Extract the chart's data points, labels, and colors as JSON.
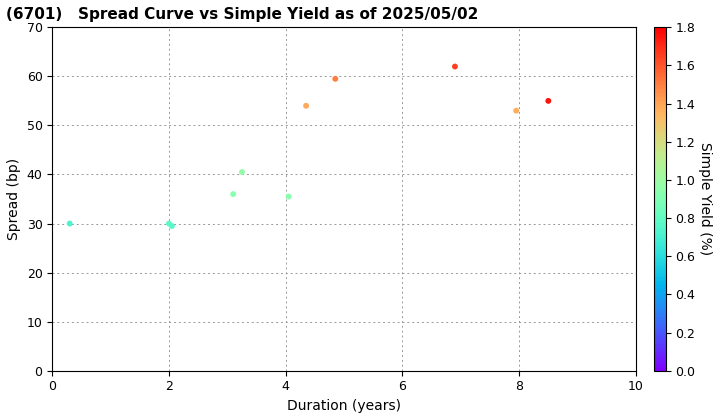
{
  "title": "(6701)   Spread Curve vs Simple Yield as of 2025/05/02",
  "xlabel": "Duration (years)",
  "ylabel": "Spread (bp)",
  "colorbar_label": "Simple Yield (%)",
  "xlim": [
    0,
    10
  ],
  "ylim": [
    0,
    70
  ],
  "xticks": [
    0,
    2,
    4,
    6,
    8,
    10
  ],
  "yticks": [
    0,
    10,
    20,
    30,
    40,
    50,
    60,
    70
  ],
  "colorbar_min": 0.0,
  "colorbar_max": 1.8,
  "colorbar_ticks": [
    0.0,
    0.2,
    0.4,
    0.6,
    0.8,
    1.0,
    1.2,
    1.4,
    1.6,
    1.8
  ],
  "data_points": [
    {
      "duration": 0.3,
      "spread": 30,
      "simple_yield": 0.72
    },
    {
      "duration": 2.0,
      "spread": 30,
      "simple_yield": 0.78
    },
    {
      "duration": 2.05,
      "spread": 29.5,
      "simple_yield": 0.76
    },
    {
      "duration": 3.1,
      "spread": 36,
      "simple_yield": 0.93
    },
    {
      "duration": 3.25,
      "spread": 40.5,
      "simple_yield": 0.97
    },
    {
      "duration": 4.05,
      "spread": 35.5,
      "simple_yield": 0.93
    },
    {
      "duration": 4.35,
      "spread": 54,
      "simple_yield": 1.38
    },
    {
      "duration": 4.85,
      "spread": 59.5,
      "simple_yield": 1.5
    },
    {
      "duration": 6.9,
      "spread": 62,
      "simple_yield": 1.65
    },
    {
      "duration": 7.95,
      "spread": 53,
      "simple_yield": 1.37
    },
    {
      "duration": 8.5,
      "spread": 55,
      "simple_yield": 1.75
    }
  ],
  "marker_size": 18,
  "background_color": "#ffffff",
  "grid_color": "#999999",
  "title_fontsize": 11,
  "axis_label_fontsize": 10,
  "tick_fontsize": 9,
  "colorbar_fontsize": 9,
  "colorbar_label_fontsize": 10
}
